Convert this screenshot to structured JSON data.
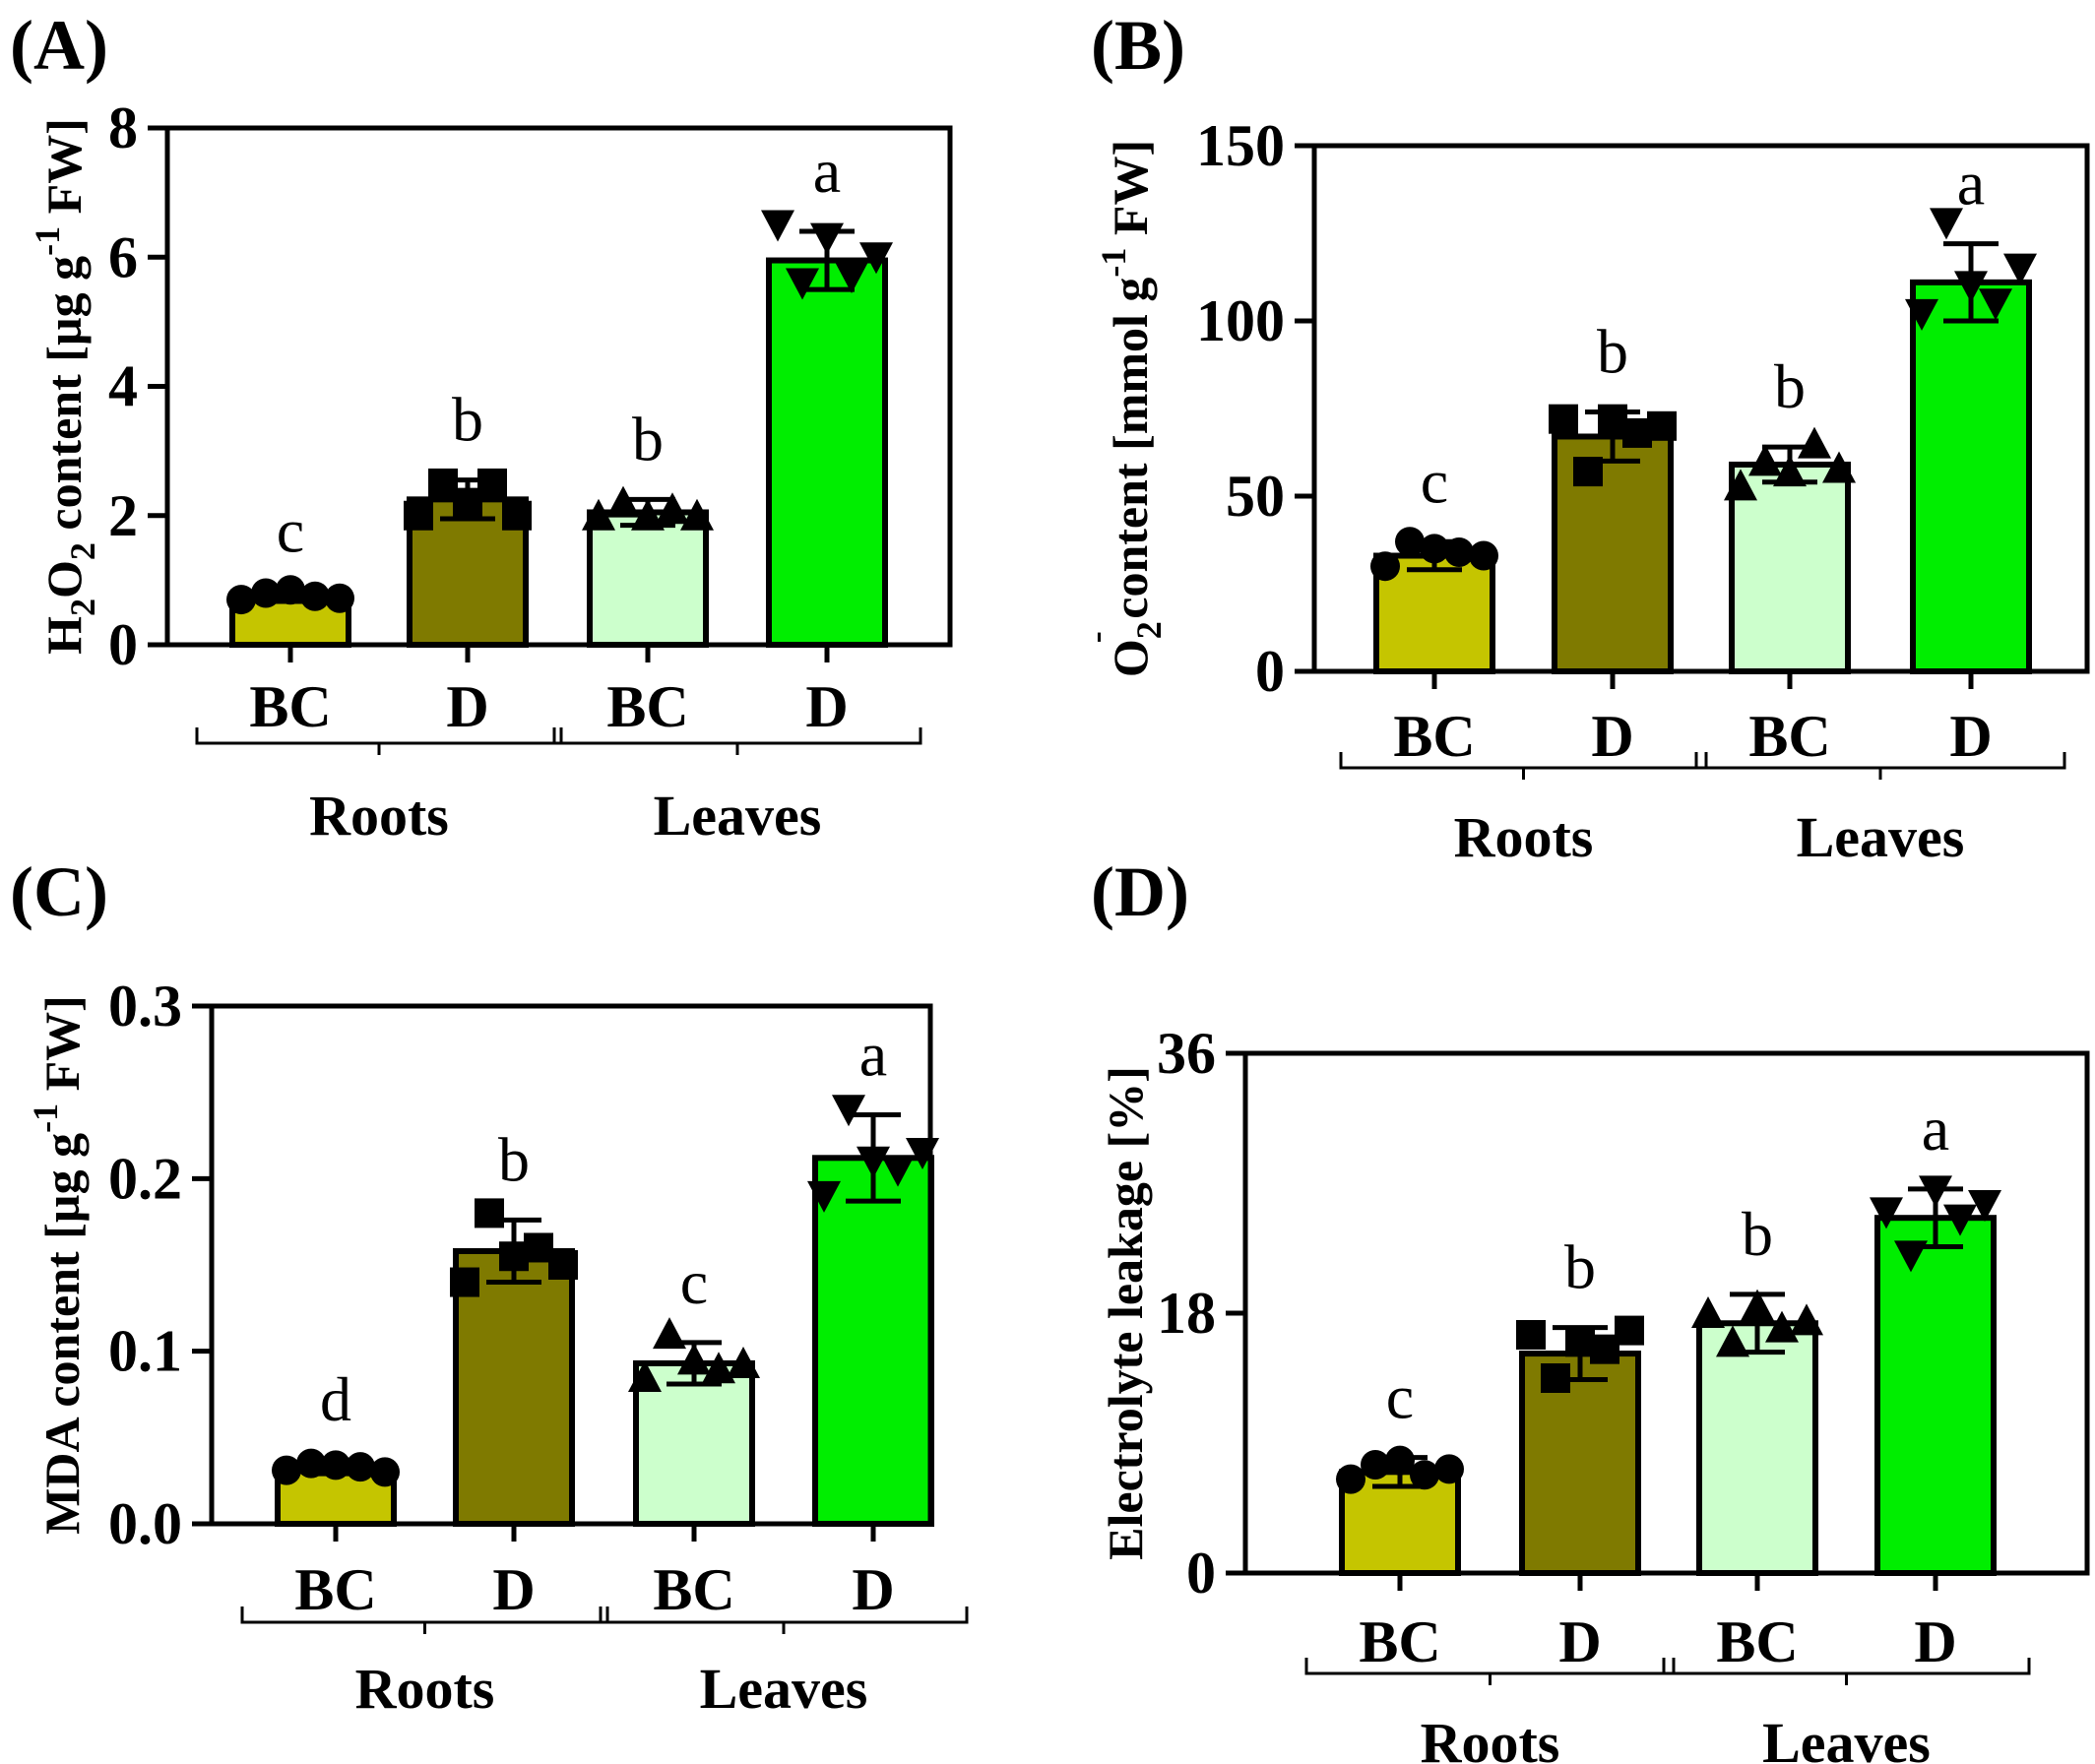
{
  "colors": {
    "roots_BC": "#c5c500",
    "roots_D": "#7f7a00",
    "leaves_BC": "#ccffcc",
    "leaves_D": "#00ee00",
    "outline": "#000000"
  },
  "chart_data": [
    {
      "panel": "(A)",
      "type": "bar",
      "categories": [
        "BC",
        "D",
        "BC",
        "D"
      ],
      "groups": [
        {
          "name": "Roots",
          "categories": [
            0,
            1
          ]
        },
        {
          "name": "Leaves",
          "categories": [
            2,
            3
          ]
        }
      ],
      "ylabel": {
        "pre": "H",
        "s1": "2",
        "mid": "O",
        "s2": "2",
        "post": " content [µg g",
        "sup": "-1",
        "tail": " FW]"
      },
      "ylim": [
        0,
        8
      ],
      "yticks": [
        "0",
        "2",
        "4",
        "6",
        "8"
      ],
      "values": [
        0.75,
        2.25,
        2.05,
        5.95
      ],
      "errors": [
        0.08,
        0.3,
        0.2,
        0.45
      ],
      "letters": [
        "c",
        "b",
        "b",
        "a"
      ],
      "markers": [
        "circle",
        "square",
        "triangle-up",
        "triangle-down"
      ],
      "points": [
        [
          0.7,
          0.8,
          0.85,
          0.75,
          0.72
        ],
        [
          2.0,
          2.5,
          2.2,
          2.5,
          2.0
        ],
        [
          2.0,
          2.2,
          2.0,
          2.1,
          2.0
        ],
        [
          6.5,
          5.6,
          6.3,
          5.7,
          6.0
        ]
      ]
    },
    {
      "panel": "(B)",
      "type": "bar",
      "categories": [
        "BC",
        "D",
        "BC",
        "D"
      ],
      "groups": [
        {
          "name": "Roots",
          "categories": [
            0,
            1
          ]
        },
        {
          "name": "Leaves",
          "categories": [
            2,
            3
          ]
        }
      ],
      "ylabel": {
        "pre": "O",
        "s1": "2",
        "mid": "",
        "s2": "",
        "post": " content [mmol g",
        "sup": "-1",
        "tail": " FW]",
        "superscript_top": "-"
      },
      "ylim": [
        0,
        150
      ],
      "yticks": [
        "0",
        "50",
        "100",
        "150"
      ],
      "values": [
        33,
        67,
        59,
        111
      ],
      "errors": [
        4,
        7,
        5,
        11
      ],
      "letters": [
        "c",
        "b",
        "b",
        "a"
      ],
      "markers": [
        "circle",
        "square",
        "triangle-up",
        "triangle-down"
      ],
      "points": [
        [
          30,
          37,
          35,
          34,
          33
        ],
        [
          72,
          57,
          72,
          68,
          70
        ],
        [
          53,
          60,
          57,
          65,
          58
        ],
        [
          102,
          128,
          110,
          105,
          115
        ]
      ]
    },
    {
      "panel": "(C)",
      "type": "bar",
      "categories": [
        "BC",
        "D",
        "BC",
        "D"
      ],
      "groups": [
        {
          "name": "Roots",
          "categories": [
            0,
            1
          ]
        },
        {
          "name": "Leaves",
          "categories": [
            2,
            3
          ]
        }
      ],
      "ylabel": {
        "pre": "MDA content [µg g",
        "s1": "",
        "mid": "",
        "s2": "",
        "post": "",
        "sup": "-1",
        "tail": " FW]"
      },
      "ylim": [
        0,
        0.3
      ],
      "yticks": [
        "0.0",
        "0.1",
        "0.2",
        "0.3"
      ],
      "values": [
        0.033,
        0.158,
        0.093,
        0.212
      ],
      "errors": [
        0.004,
        0.018,
        0.012,
        0.025
      ],
      "letters": [
        "d",
        "b",
        "c",
        "a"
      ],
      "markers": [
        "circle",
        "square",
        "triangle-up",
        "triangle-down"
      ],
      "points": [
        [
          0.031,
          0.035,
          0.034,
          0.033,
          0.03
        ],
        [
          0.14,
          0.18,
          0.155,
          0.16,
          0.15
        ],
        [
          0.085,
          0.11,
          0.095,
          0.09,
          0.093
        ],
        [
          0.19,
          0.24,
          0.21,
          0.205,
          0.215
        ]
      ]
    },
    {
      "panel": "(D)",
      "type": "bar",
      "categories": [
        "BC",
        "D",
        "BC",
        "D"
      ],
      "groups": [
        {
          "name": "Roots",
          "categories": [
            0,
            1
          ]
        },
        {
          "name": "Leaves",
          "categories": [
            2,
            3
          ]
        }
      ],
      "ylabel": {
        "pre": "Electrolyte leakage [%]",
        "s1": "",
        "mid": "",
        "s2": "",
        "post": "",
        "sup": "",
        "tail": ""
      },
      "ylim": [
        0,
        36
      ],
      "yticks": [
        "0",
        "18",
        "36"
      ],
      "values": [
        7.0,
        15.2,
        17.3,
        24.6
      ],
      "errors": [
        1.0,
        1.8,
        2.0,
        2.0
      ],
      "letters": [
        "c",
        "b",
        "b",
        "a"
      ],
      "markers": [
        "circle",
        "square",
        "triangle-up",
        "triangle-down"
      ],
      "points": [
        [
          6.5,
          7.5,
          7.8,
          6.8,
          7.2
        ],
        [
          16.5,
          13.5,
          16.0,
          15.5,
          16.8
        ],
        [
          18.0,
          16.0,
          18.5,
          17.0,
          17.5
        ],
        [
          25.0,
          22.0,
          26.5,
          24.5,
          25.5
        ]
      ]
    }
  ]
}
